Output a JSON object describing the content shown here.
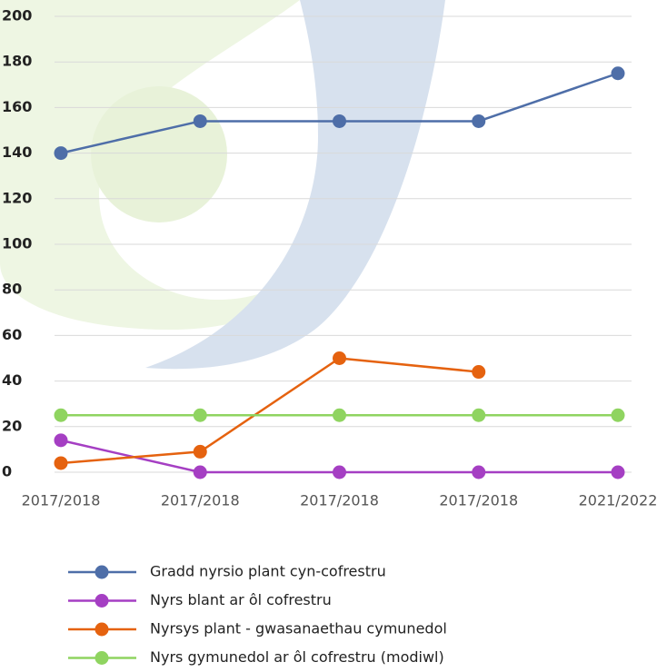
{
  "chart_data": {
    "type": "line",
    "categories": [
      "2017/2018",
      "2017/2018",
      "2017/2018",
      "2017/2018",
      "2021/2022"
    ],
    "series": [
      {
        "name": "Gradd nyrsio plant cyn-cofrestru",
        "color": "#4e6ea8",
        "values": [
          140,
          154,
          154,
          154,
          175
        ]
      },
      {
        "name": "Nyrs blant ar ôl cofrestru",
        "color": "#a53fc3",
        "values": [
          14,
          0,
          0,
          0,
          0
        ]
      },
      {
        "name": "Nyrsys plant - gwasanaethau cymunedol",
        "color": "#e5620f",
        "values": [
          4,
          9,
          50,
          44,
          null
        ]
      },
      {
        "name": "Nyrs gymunedol ar ôl cofrestru (modiwl)",
        "color": "#8fd460",
        "values": [
          25,
          25,
          25,
          25,
          25
        ]
      }
    ],
    "ylim": [
      0,
      200
    ],
    "yticks": [
      0,
      20,
      40,
      60,
      80,
      100,
      120,
      140,
      160,
      180,
      200
    ],
    "grid": true
  }
}
